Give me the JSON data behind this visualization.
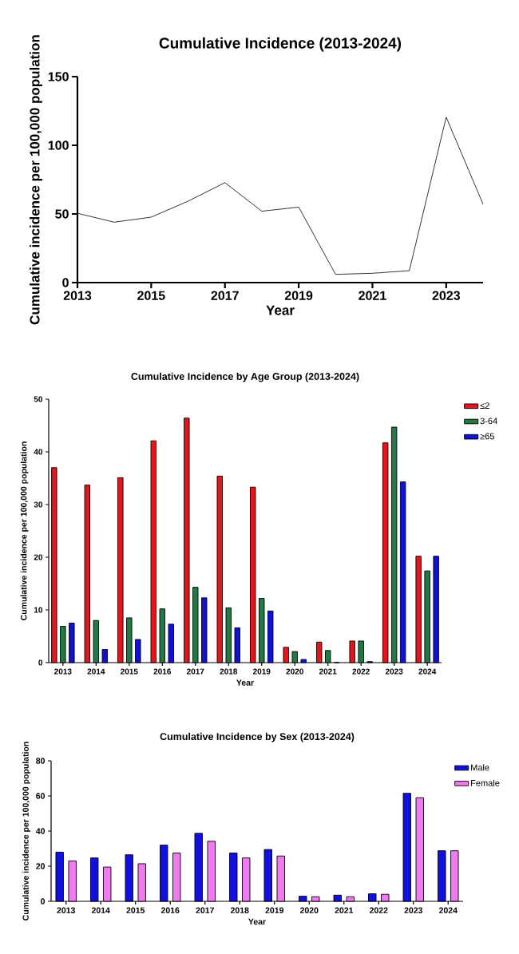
{
  "chart_data": [
    {
      "type": "line",
      "title": "Cumulative Incidence (2013-2024)",
      "xlabel": "Year",
      "ylabel": "Cumulative incidence per 100,000 population",
      "x": [
        2013,
        2014,
        2015,
        2016,
        2017,
        2018,
        2019,
        2020,
        2021,
        2022,
        2023,
        2024
      ],
      "values": [
        50.5,
        44,
        47.7,
        59.3,
        72.8,
        52,
        55,
        6,
        6.8,
        8.7,
        120.5,
        57.1
      ],
      "color": "#000000",
      "xlim": [
        2013,
        2024
      ],
      "xticks": [
        2013,
        2015,
        2017,
        2019,
        2021,
        2023
      ],
      "ylim": [
        0,
        150
      ],
      "yticks": [
        0,
        50,
        100,
        150
      ]
    },
    {
      "type": "bar",
      "title": "Cumulative Incidence by Age Group (2013-2024)",
      "xlabel": "Year",
      "ylabel": "Cumulative incidence per 100,000 population",
      "categories": [
        "2013",
        "2014",
        "2015",
        "2016",
        "2017",
        "2018",
        "2019",
        "2020",
        "2021",
        "2022",
        "2023",
        "2024"
      ],
      "series": [
        {
          "name": "≤2",
          "color": "#e8141c",
          "values": [
            37,
            33.7,
            35.1,
            42.1,
            46.4,
            35.4,
            33.3,
            2.9,
            3.9,
            4.1,
            41.7,
            20.2
          ]
        },
        {
          "name": "3-64",
          "color": "#1f7a45",
          "values": [
            6.9,
            8,
            8.5,
            10.2,
            14.3,
            10.4,
            12.2,
            2.1,
            2.3,
            4.1,
            44.7,
            17.4
          ]
        },
        {
          "name": "≥65",
          "color": "#1010d8",
          "values": [
            7.5,
            2.5,
            4.4,
            7.3,
            12.3,
            6.6,
            9.8,
            0.6,
            0,
            0.2,
            34.3,
            20.2
          ]
        }
      ],
      "ylim": [
        0,
        50
      ],
      "yticks": [
        0,
        10,
        20,
        30,
        40,
        50
      ],
      "legend": "top right"
    },
    {
      "type": "bar",
      "title": "Cumulative Incidence by Sex (2013-2024)",
      "xlabel": "Year",
      "ylabel": "Cumulative incidence per 100,000 population",
      "categories": [
        "2013",
        "2014",
        "2015",
        "2016",
        "2017",
        "2018",
        "2019",
        "2020",
        "2021",
        "2022",
        "2023",
        "2024"
      ],
      "series": [
        {
          "name": "Male",
          "color": "#1010e0",
          "values": [
            28,
            24.7,
            26.5,
            32,
            38.7,
            27.5,
            29.5,
            2.9,
            3.5,
            4.3,
            61.5,
            28.8
          ]
        },
        {
          "name": "Female",
          "color": "#f07af0",
          "values": [
            23,
            19.5,
            21.4,
            27.5,
            34.2,
            24.7,
            25.8,
            2.6,
            2.6,
            4,
            59,
            28.8
          ]
        }
      ],
      "ylim": [
        0,
        80
      ],
      "yticks": [
        0,
        20,
        40,
        60,
        80
      ],
      "legend": "top right"
    }
  ]
}
